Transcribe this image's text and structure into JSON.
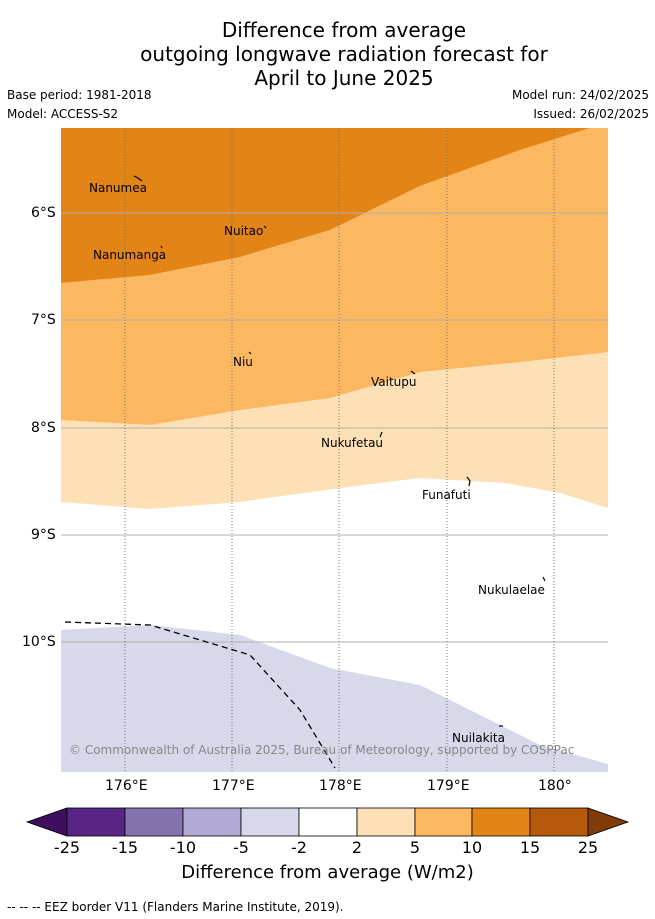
{
  "title": [
    "Difference from average",
    "outgoing longwave radiation forecast for",
    "April to June 2025"
  ],
  "base_period": "Base period: 1981-2018",
  "model": "Model: ACCESS-S2",
  "model_run": "Model run: 24/02/2025",
  "issued": "Issued: 26/02/2025",
  "lat_labels": [
    "6°S",
    "7°S",
    "8°S",
    "9°S",
    "10°S"
  ],
  "lon_labels": [
    "176°E",
    "177°E",
    "178°E",
    "179°E",
    "180°"
  ],
  "islands": [
    "Nanumea",
    "Nuitao",
    "Nanumanga",
    "Niu",
    "Vaitupu",
    "Nukufetau",
    "Funafuti",
    "Nukulaelae",
    "Nuilakita"
  ],
  "copyright": "© Commonwealth of Australia 2025, Bureau of Meteorology, supported by COSPPac",
  "colorbar": {
    "ticks": [
      "-25",
      "-15",
      "-10",
      "-5",
      "-2",
      "2",
      "5",
      "10",
      "15",
      "25"
    ],
    "colors": [
      "#3d0f5c",
      "#582585",
      "#8573b0",
      "#b2a9d4",
      "#d7d8ea",
      "#ffffff",
      "#fde0b5",
      "#fcb761",
      "#e28516",
      "#b55a0a",
      "#7f3b08"
    ],
    "title": "Difference from average (W/m2)"
  },
  "footer": "-- -- -- EEZ border V11 (Flanders Marine Institute, 2019)."
}
